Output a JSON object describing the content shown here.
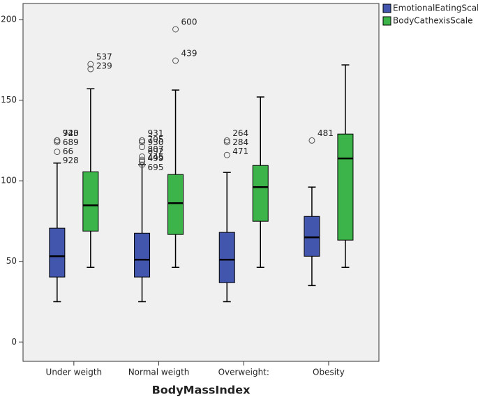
{
  "chart_data": {
    "type": "box",
    "x_label": "BodyMassIndex",
    "categories": [
      "Under weigth",
      "Normal weigth",
      "Overweight:",
      "Obesity"
    ],
    "ylim": [
      -12,
      210
    ],
    "yticks": [
      0,
      50,
      100,
      150,
      200
    ],
    "legend": "outside-top-right",
    "series": [
      {
        "name": "EmotionalEatingScale",
        "color": "#4356ad",
        "boxes": [
          {
            "min": 25,
            "q1": 40.3,
            "median": 53.2,
            "q3": 70.6,
            "max": 111,
            "outliers": [
              {
                "value": 125,
                "label": "720"
              },
              {
                "value": 125,
                "label": "689"
              },
              {
                "value": 124,
                "label": "66"
              },
              {
                "value": 118,
                "label": "928"
              },
              {
                "value": 125,
                "label": "943"
              }
            ]
          },
          {
            "min": 25,
            "q1": 40.3,
            "median": 51.1,
            "q3": 67.5,
            "max": 110,
            "outliers": [
              {
                "value": 125,
                "label": "931"
              },
              {
                "value": 125,
                "label": "930"
              },
              {
                "value": 124,
                "label": "692"
              },
              {
                "value": 121,
                "label": "705"
              },
              {
                "value": 115,
                "label": "807"
              },
              {
                "value": 113,
                "label": "499"
              },
              {
                "value": 112,
                "label": "695"
              },
              {
                "value": 110,
                "label": "445"
              }
            ]
          },
          {
            "min": 25,
            "q1": 36.8,
            "median": 51.1,
            "q3": 68,
            "max": 105.2,
            "outliers": [
              {
                "value": 125,
                "label": "264"
              },
              {
                "value": 124,
                "label": "284"
              },
              {
                "value": 116,
                "label": "471"
              }
            ]
          },
          {
            "min": 35,
            "q1": 53.2,
            "median": 64.9,
            "q3": 77.9,
            "max": 96.1,
            "outliers": [
              {
                "value": 125,
                "label": "481"
              }
            ]
          }
        ]
      },
      {
        "name": "BodyCathexisScale",
        "color": "#3cb44a",
        "boxes": [
          {
            "min": 46.3,
            "q1": 68.8,
            "median": 84.8,
            "q3": 105.6,
            "max": 157.1,
            "outliers": [
              {
                "value": 172.3,
                "label": "537"
              },
              {
                "value": 169.3,
                "label": "239"
              }
            ]
          },
          {
            "min": 46.3,
            "q1": 66.7,
            "median": 86.1,
            "q3": 103.9,
            "max": 156.3,
            "outliers": [
              {
                "value": 194,
                "label": "600"
              },
              {
                "value": 174.5,
                "label": "439"
              }
            ]
          },
          {
            "min": 46.3,
            "q1": 74.9,
            "median": 96.1,
            "q3": 109.5,
            "max": 152,
            "outliers": []
          },
          {
            "min": 46.3,
            "q1": 63.2,
            "median": 113.9,
            "q3": 129,
            "max": 171.9,
            "outliers": []
          }
        ]
      }
    ]
  }
}
